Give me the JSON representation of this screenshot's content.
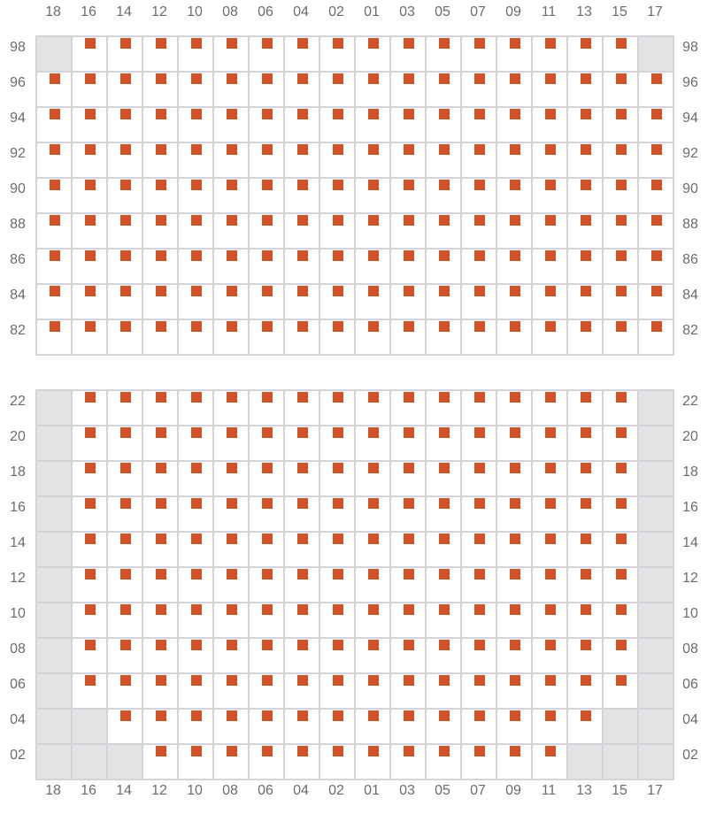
{
  "columns": [
    "18",
    "16",
    "14",
    "12",
    "10",
    "08",
    "06",
    "04",
    "02",
    "01",
    "03",
    "05",
    "07",
    "09",
    "11",
    "13",
    "15",
    "17"
  ],
  "legend_codes": {
    "X": "marked",
    "-": "unavailable",
    "o": "empty"
  },
  "colors": {
    "mark": "#cf5229",
    "unavailable": "#e4e4e6",
    "grid": "#d4d4d8",
    "label": "#6b6b73"
  },
  "sections": [
    {
      "rows": [
        {
          "label": "98",
          "cells": "-XXXXXXXXXXXXXXXX-"
        },
        {
          "label": "96",
          "cells": "XXXXXXXXXXXXXXXXXX"
        },
        {
          "label": "94",
          "cells": "XXXXXXXXXXXXXXXXXX"
        },
        {
          "label": "92",
          "cells": "XXXXXXXXXXXXXXXXXX"
        },
        {
          "label": "90",
          "cells": "XXXXXXXXXXXXXXXXXX"
        },
        {
          "label": "88",
          "cells": "XXXXXXXXXXXXXXXXXX"
        },
        {
          "label": "86",
          "cells": "XXXXXXXXXXXXXXXXXX"
        },
        {
          "label": "84",
          "cells": "XXXXXXXXXXXXXXXXXX"
        },
        {
          "label": "82",
          "cells": "XXXXXXXXXXXXXXXXXX"
        }
      ]
    },
    {
      "rows": [
        {
          "label": "22",
          "cells": "-XXXXXXXXXXXXXXXX-"
        },
        {
          "label": "20",
          "cells": "-XXXXXXXXXXXXXXXX-"
        },
        {
          "label": "18",
          "cells": "-XXXXXXXXXXXXXXXX-"
        },
        {
          "label": "16",
          "cells": "-XXXXXXXXXXXXXXXX-"
        },
        {
          "label": "14",
          "cells": "-XXXXXXXXXXXXXXXX-"
        },
        {
          "label": "12",
          "cells": "-XXXXXXXXXXXXXXXX-"
        },
        {
          "label": "10",
          "cells": "-XXXXXXXXXXXXXXXX-"
        },
        {
          "label": "08",
          "cells": "-XXXXXXXXXXXXXXXX-"
        },
        {
          "label": "06",
          "cells": "-XXXXXXXXXXXXXXXX-"
        },
        {
          "label": "04",
          "cells": "--XXXXXXXXXXXXXX--"
        },
        {
          "label": "02",
          "cells": "---XXXXXXXXXXXX---"
        }
      ]
    }
  ]
}
